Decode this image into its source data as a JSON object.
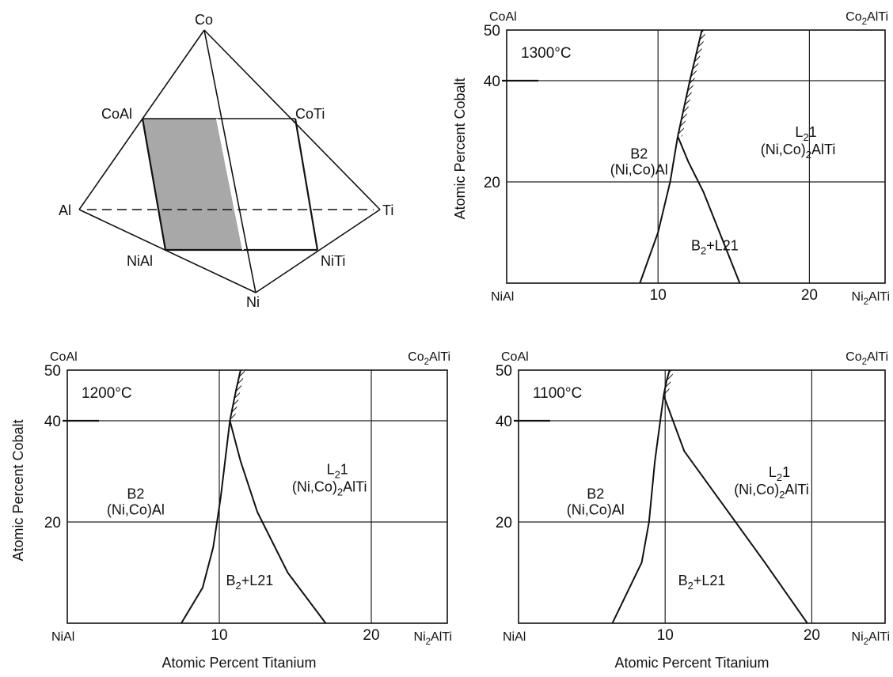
{
  "tetrahedron": {
    "vertices": {
      "co": "Co",
      "al": "Al",
      "ti": "Ti",
      "ni": "Ni"
    },
    "section_corners": {
      "coal": "CoAl",
      "coti": "CoTi",
      "nial": "NiAl",
      "niti": "NiTi"
    },
    "shade_color": "#a8a8a8"
  },
  "axis_titles": {
    "y": "Atomic Percent Cobalt",
    "x": "Atomic Percent Titanium"
  },
  "corner_labels": {
    "top_left": "CoAl",
    "top_right": "Co2AlTi",
    "bottom_left": "NiAl",
    "bottom_right": "Ni2AlTi"
  },
  "phases": {
    "b2": "B2",
    "b2_formula": "(Ni,Co)Al",
    "l21": "L21",
    "l21_formula": "(Ni,Co)2AlTi",
    "two_phase": "B2+L21"
  },
  "chart_data": [
    {
      "type": "line",
      "temperature": "1300°C",
      "x_axis_ticks": [
        10,
        20
      ],
      "y_axis_ticks": [
        20,
        40,
        50
      ],
      "xlim": [
        0,
        25
      ],
      "ylim": [
        0,
        50
      ],
      "series": [
        {
          "role": "b2-boundary",
          "x": [
            8.8,
            9.4,
            10.0,
            10.8,
            11.3
          ],
          "y": [
            0,
            5,
            10,
            20,
            29
          ]
        },
        {
          "role": "l21-boundary",
          "x": [
            11.3,
            12.0,
            13.0,
            14.2,
            15.4
          ],
          "y": [
            29,
            24,
            18,
            9,
            0
          ]
        },
        {
          "role": "hatched-boundary",
          "x": [
            11.3,
            12.1,
            12.9
          ],
          "y": [
            29,
            40,
            50
          ]
        }
      ]
    },
    {
      "type": "line",
      "temperature": "1200°C",
      "x_axis_ticks": [
        10,
        20
      ],
      "y_axis_ticks": [
        20,
        40,
        50
      ],
      "xlim": [
        0,
        25
      ],
      "ylim": [
        0,
        50
      ],
      "series": [
        {
          "role": "b2-boundary",
          "x": [
            7.5,
            8.9,
            9.6,
            10.1,
            10.7
          ],
          "y": [
            0,
            7,
            15,
            25,
            40
          ]
        },
        {
          "role": "l21-boundary",
          "x": [
            10.7,
            11.4,
            12.5,
            14.5,
            17.0
          ],
          "y": [
            40,
            32,
            22,
            10,
            0
          ]
        },
        {
          "role": "hatched-boundary",
          "x": [
            10.7,
            11.1,
            11.4
          ],
          "y": [
            40,
            46,
            50
          ]
        }
      ]
    },
    {
      "type": "line",
      "temperature": "1100°C",
      "x_axis_ticks": [
        10,
        20
      ],
      "y_axis_ticks": [
        20,
        40,
        50
      ],
      "xlim": [
        0,
        25
      ],
      "ylim": [
        0,
        50
      ],
      "series": [
        {
          "role": "b2-boundary",
          "x": [
            6.4,
            8.4,
            8.9,
            9.3,
            9.9
          ],
          "y": [
            0,
            12,
            20,
            32,
            45
          ]
        },
        {
          "role": "l21-boundary",
          "x": [
            9.9,
            11.3,
            13.8,
            16.8,
            19.7
          ],
          "y": [
            45,
            34,
            24,
            12,
            0
          ]
        },
        {
          "role": "hatched-boundary",
          "x": [
            9.9,
            10.1,
            10.3
          ],
          "y": [
            45,
            48,
            50
          ]
        }
      ]
    }
  ]
}
